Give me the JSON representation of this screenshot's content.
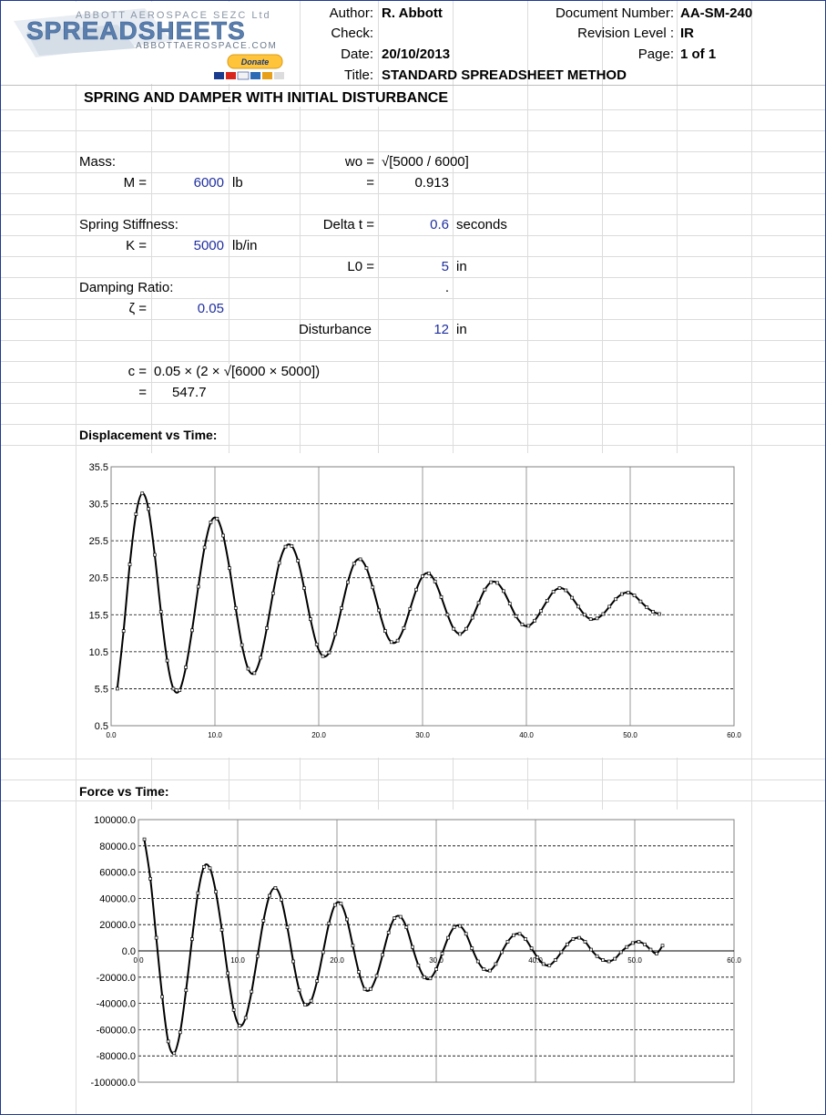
{
  "header": {
    "logo_top": "ABBOTT AEROSPACE SEZC Ltd",
    "logo_main": "SPREADSHEETS",
    "logo_bottom": "ABBOTTAEROSPACE.COM",
    "donate_label": "Donate",
    "author_label": "Author:",
    "author_value": "R. Abbott",
    "check_label": "Check:",
    "date_label": "Date:",
    "date_value": "20/10/2013",
    "title_label": "Title:",
    "title_value": "STANDARD SPREADSHEET METHOD",
    "docnum_label": "Document Number:",
    "docnum_value": "AA-SM-240",
    "rev_label": "Revision Level :",
    "rev_value": "IR",
    "page_label": "Page:",
    "page_value": "1 of 1"
  },
  "main_title": "SPRING AND DAMPER WITH INITIAL DISTURBANCE",
  "inputs": {
    "mass_label": "Mass:",
    "m_label": "M =",
    "m_value": "6000",
    "m_unit": "lb",
    "spring_label": "Spring Stiffness:",
    "k_label": "K =",
    "k_value": "5000",
    "k_unit": "lb/in",
    "damping_label": "Damping Ratio:",
    "zeta_label": "ζ =",
    "zeta_value": "0.05",
    "wo_label": "wo =",
    "wo_formula": "√[5000 / 6000]",
    "wo_eq": "=",
    "wo_value": "0.913",
    "dt_label": "Delta t =",
    "dt_value": "0.6",
    "dt_unit": "seconds",
    "l0_label": "L0 =",
    "l0_value": "5",
    "l0_unit": "in",
    "dot": ".",
    "dist_label": "Disturbance",
    "dist_value": "12",
    "dist_unit": "in",
    "c_label": "c =",
    "c_formula": "0.05 × (2 × √[6000 × 5000])",
    "c_eq": "=",
    "c_value": "547.7"
  },
  "chart_titles": {
    "displacement": "Displacement vs Time:",
    "force": "Force vs Time:"
  },
  "chart_data": [
    {
      "type": "line",
      "x_ticks": [
        "0.0",
        "10.0",
        "20.0",
        "30.0",
        "40.0",
        "50.0",
        "60.0"
      ],
      "y_ticks": [
        "35.5",
        "30.5",
        "25.5",
        "20.5",
        "15.5",
        "10.5",
        "5.5",
        "0.5"
      ],
      "xlim": [
        0,
        60
      ],
      "ylim": [
        0.5,
        35.5
      ],
      "grid": "dashed-horizontal, solid-vertical",
      "x": [
        0.6,
        1.2,
        1.8,
        2.4,
        3.0,
        3.6,
        4.2,
        4.8,
        5.4,
        6.0,
        6.6,
        7.2,
        7.8,
        8.4,
        9.0,
        9.6,
        10.2,
        10.8,
        11.4,
        12.0,
        12.6,
        13.2,
        13.8,
        14.4,
        15.0,
        15.6,
        16.2,
        16.8,
        17.4,
        18.0,
        18.6,
        19.2,
        19.8,
        20.4,
        21.0,
        21.6,
        22.2,
        22.8,
        23.4,
        24.0,
        24.6,
        25.2,
        25.8,
        26.4,
        27.0,
        27.6,
        28.2,
        28.8,
        29.4,
        30.0,
        30.6,
        31.2,
        31.8,
        32.4,
        33.0,
        33.6,
        34.2,
        34.8,
        35.4,
        36.0,
        36.6,
        37.2,
        37.8,
        38.4,
        39.0,
        39.6,
        40.2,
        40.8,
        41.4,
        42.0,
        42.6,
        43.2,
        43.8,
        44.4,
        45.0,
        45.6,
        46.2,
        46.8,
        47.4,
        48.0,
        48.6,
        49.2,
        49.8,
        50.4,
        51.0,
        51.6,
        52.2,
        52.8
      ],
      "y": [
        5.5,
        13.3,
        22.3,
        29.1,
        31.9,
        29.8,
        23.6,
        15.9,
        9.3,
        5.5,
        5.3,
        8.4,
        13.4,
        19.3,
        24.6,
        28.0,
        28.5,
        26.2,
        21.8,
        16.4,
        11.4,
        8.2,
        7.6,
        9.7,
        13.7,
        18.4,
        22.5,
        24.7,
        24.8,
        22.8,
        19.1,
        14.9,
        11.5,
        9.9,
        10.4,
        12.9,
        16.4,
        19.9,
        22.4,
        23.0,
        21.8,
        19.2,
        16.1,
        13.3,
        11.8,
        12.0,
        13.7,
        16.3,
        18.9,
        20.7,
        21.1,
        20.0,
        17.9,
        15.5,
        13.6,
        12.9,
        13.6,
        15.1,
        17.1,
        18.9,
        19.9,
        19.8,
        18.7,
        17.0,
        15.3,
        14.2,
        14.0,
        14.7,
        16.0,
        17.4,
        18.6,
        19.1,
        18.8,
        17.8,
        16.6,
        15.5,
        14.9,
        15.0,
        15.6,
        16.6,
        17.6,
        18.3,
        18.5,
        18.1,
        17.3,
        16.5,
        15.9,
        15.6
      ]
    },
    {
      "type": "line",
      "x_ticks": [
        "0.0",
        "10.0",
        "20.0",
        "30.0",
        "40.0",
        "50.0",
        "60.0"
      ],
      "y_ticks": [
        "100000.0",
        "80000.0",
        "60000.0",
        "40000.0",
        "20000.0",
        "0.0",
        "-20000.0",
        "-40000.0",
        "-60000.0",
        "-80000.0",
        "-100000.0"
      ],
      "xlim": [
        0,
        60
      ],
      "ylim": [
        -100000,
        100000
      ],
      "grid": "dashed-horizontal, solid-vertical",
      "x": [
        0.6,
        1.2,
        1.8,
        2.4,
        3.0,
        3.6,
        4.2,
        4.8,
        5.4,
        6.0,
        6.6,
        7.2,
        7.8,
        8.4,
        9.0,
        9.6,
        10.2,
        10.8,
        11.4,
        12.0,
        12.6,
        13.2,
        13.8,
        14.4,
        15.0,
        15.6,
        16.2,
        16.8,
        17.4,
        18.0,
        18.6,
        19.2,
        19.8,
        20.4,
        21.0,
        21.6,
        22.2,
        22.8,
        23.4,
        24.0,
        24.6,
        25.2,
        25.8,
        26.4,
        27.0,
        27.6,
        28.2,
        28.8,
        29.4,
        30.0,
        30.6,
        31.2,
        31.8,
        32.4,
        33.0,
        33.6,
        34.2,
        34.8,
        35.4,
        36.0,
        36.6,
        37.2,
        37.8,
        38.4,
        39.0,
        39.6,
        40.2,
        40.8,
        41.4,
        42.0,
        42.6,
        43.2,
        43.8,
        44.4,
        45.0,
        45.6,
        46.2,
        46.8,
        47.4,
        48.0,
        48.6,
        49.2,
        49.8,
        50.4,
        51.0,
        51.6,
        52.2,
        52.8
      ],
      "y": [
        85000,
        55000,
        10000,
        -35000,
        -69000,
        -78000,
        -62000,
        -30000,
        9000,
        44000,
        64000,
        63000,
        45000,
        16000,
        -17000,
        -45000,
        -57000,
        -51000,
        -31000,
        -4000,
        23000,
        42000,
        48000,
        39000,
        18000,
        -8000,
        -30000,
        -41000,
        -38000,
        -23000,
        -1000,
        21000,
        35000,
        36000,
        24000,
        4000,
        -16000,
        -29000,
        -29000,
        -19000,
        -3000,
        14000,
        25000,
        26000,
        18000,
        3000,
        -11000,
        -20000,
        -21000,
        -14000,
        -2000,
        10000,
        18000,
        19000,
        13000,
        2000,
        -8000,
        -14000,
        -15000,
        -10000,
        -1000,
        7000,
        12000,
        13000,
        9000,
        2000,
        -5000,
        -10000,
        -11000,
        -7000,
        -1000,
        5000,
        9000,
        10000,
        7000,
        1000,
        -4000,
        -7000,
        -8000,
        -6000,
        -1000,
        3000,
        6000,
        7000,
        5000,
        1000,
        -2000,
        4000
      ]
    }
  ]
}
